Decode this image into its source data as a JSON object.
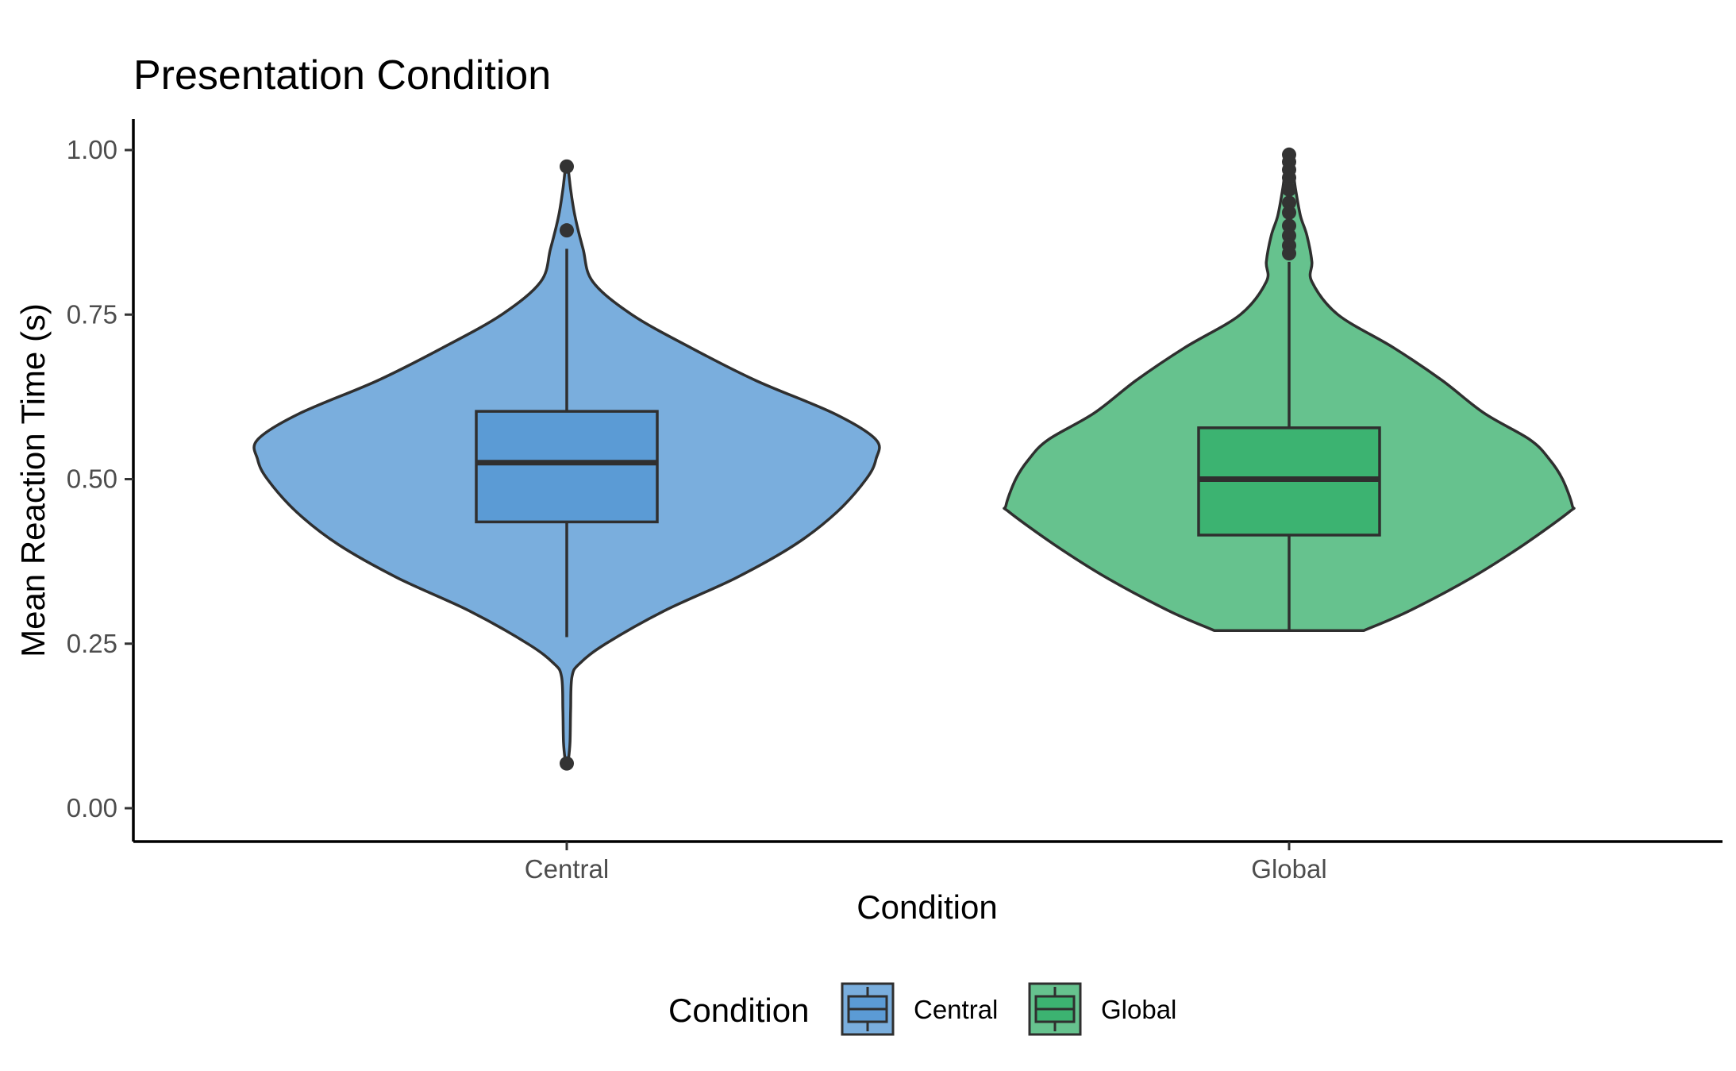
{
  "chart_data": {
    "type": "violin",
    "title": "Presentation Condition",
    "xlabel": "Condition",
    "ylabel": "Mean Reaction Time (s)",
    "categories": [
      "Central",
      "Global"
    ],
    "ylim": [
      -0.05,
      1.05
    ],
    "yticks": [
      0.0,
      0.25,
      0.5,
      0.75,
      1.0
    ],
    "ytick_labels": [
      "0.00",
      "0.25",
      "0.50",
      "0.75",
      "1.00"
    ],
    "grid": false,
    "legend": {
      "title": "Condition",
      "placement": "bottom",
      "items": [
        {
          "label": "Central",
          "violin_color": "#7AAEDD",
          "box_color": "#5B9BD5"
        },
        {
          "label": "Global",
          "violin_color": "#66C28E",
          "box_color": "#3CB371"
        }
      ]
    },
    "series": [
      {
        "name": "Central",
        "violin_color": "#7AAEDD",
        "box_color": "#5B9BD5",
        "box": {
          "q1": 0.435,
          "median": 0.525,
          "q3": 0.603,
          "whisker_low": 0.26,
          "whisker_high": 0.85
        },
        "outliers": [
          0.975,
          0.878,
          0.068
        ],
        "density": [
          [
            0.068,
            0.004
          ],
          [
            0.1,
            0.01
          ],
          [
            0.15,
            0.012
          ],
          [
            0.2,
            0.016
          ],
          [
            0.22,
            0.04
          ],
          [
            0.25,
            0.12
          ],
          [
            0.3,
            0.3
          ],
          [
            0.35,
            0.52
          ],
          [
            0.4,
            0.7
          ],
          [
            0.45,
            0.83
          ],
          [
            0.5,
            0.92
          ],
          [
            0.53,
            0.95
          ],
          [
            0.56,
            0.95
          ],
          [
            0.6,
            0.82
          ],
          [
            0.65,
            0.58
          ],
          [
            0.7,
            0.38
          ],
          [
            0.75,
            0.2
          ],
          [
            0.8,
            0.08
          ],
          [
            0.85,
            0.05
          ],
          [
            0.9,
            0.025
          ],
          [
            0.94,
            0.012
          ],
          [
            0.975,
            0.004
          ]
        ]
      },
      {
        "name": "Global",
        "violin_color": "#66C28E",
        "box_color": "#3CB371",
        "box": {
          "q1": 0.415,
          "median": 0.5,
          "q3": 0.578,
          "whisker_low": 0.27,
          "whisker_high": 0.83
        },
        "outliers": [
          0.993,
          0.982,
          0.97,
          0.958,
          0.94,
          0.92,
          0.905,
          0.885,
          0.87,
          0.855,
          0.843
        ],
        "density": [
          [
            0.27,
            0.23
          ],
          [
            0.3,
            0.37
          ],
          [
            0.35,
            0.56
          ],
          [
            0.4,
            0.72
          ],
          [
            0.45,
            0.86
          ],
          [
            0.46,
            0.87
          ],
          [
            0.5,
            0.84
          ],
          [
            0.53,
            0.8
          ],
          [
            0.56,
            0.74
          ],
          [
            0.6,
            0.6
          ],
          [
            0.65,
            0.47
          ],
          [
            0.7,
            0.32
          ],
          [
            0.75,
            0.15
          ],
          [
            0.8,
            0.07
          ],
          [
            0.83,
            0.07
          ],
          [
            0.87,
            0.055
          ],
          [
            0.9,
            0.035
          ],
          [
            0.94,
            0.02
          ],
          [
            0.97,
            0.012
          ],
          [
            0.993,
            0.004
          ]
        ]
      }
    ]
  }
}
